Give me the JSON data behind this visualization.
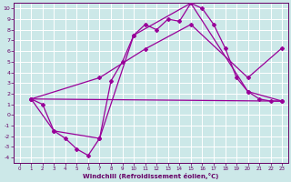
{
  "background_color": "#cce8e8",
  "grid_color": "#ffffff",
  "line_color": "#990099",
  "xlabel": "Windchill (Refroidissement éolien,°C)",
  "xlabel_color": "#660066",
  "tick_color": "#660066",
  "xlim": [
    -0.5,
    23.5
  ],
  "ylim": [
    -4.5,
    10.5
  ],
  "xticks": [
    0,
    1,
    2,
    3,
    4,
    5,
    6,
    7,
    8,
    9,
    10,
    11,
    12,
    13,
    14,
    15,
    16,
    17,
    18,
    19,
    20,
    21,
    22,
    23
  ],
  "yticks": [
    -4,
    -3,
    -2,
    -1,
    0,
    1,
    2,
    3,
    4,
    5,
    6,
    7,
    8,
    9,
    10
  ],
  "line1_x": [
    1,
    2,
    3,
    4,
    5,
    6,
    7,
    8,
    9,
    10,
    11,
    12,
    13,
    14,
    15,
    16,
    17,
    18,
    19,
    20,
    21,
    22,
    23
  ],
  "line1_y": [
    1.5,
    1.0,
    -1.5,
    -2.2,
    -3.2,
    -3.8,
    -2.2,
    3.2,
    5.0,
    7.5,
    8.5,
    8.0,
    9.0,
    8.8,
    10.5,
    10.0,
    8.5,
    6.3,
    3.5,
    2.2,
    1.5,
    1.3,
    1.3
  ],
  "line2_x": [
    1,
    3,
    7,
    10,
    15,
    20,
    23
  ],
  "line2_y": [
    1.5,
    -1.5,
    -2.2,
    7.5,
    10.5,
    2.2,
    1.3
  ],
  "line3_x": [
    1,
    7,
    11,
    15,
    20,
    23
  ],
  "line3_y": [
    1.5,
    3.5,
    6.2,
    8.5,
    3.5,
    6.3
  ],
  "line4_x": [
    1,
    23
  ],
  "line4_y": [
    1.5,
    1.3
  ]
}
